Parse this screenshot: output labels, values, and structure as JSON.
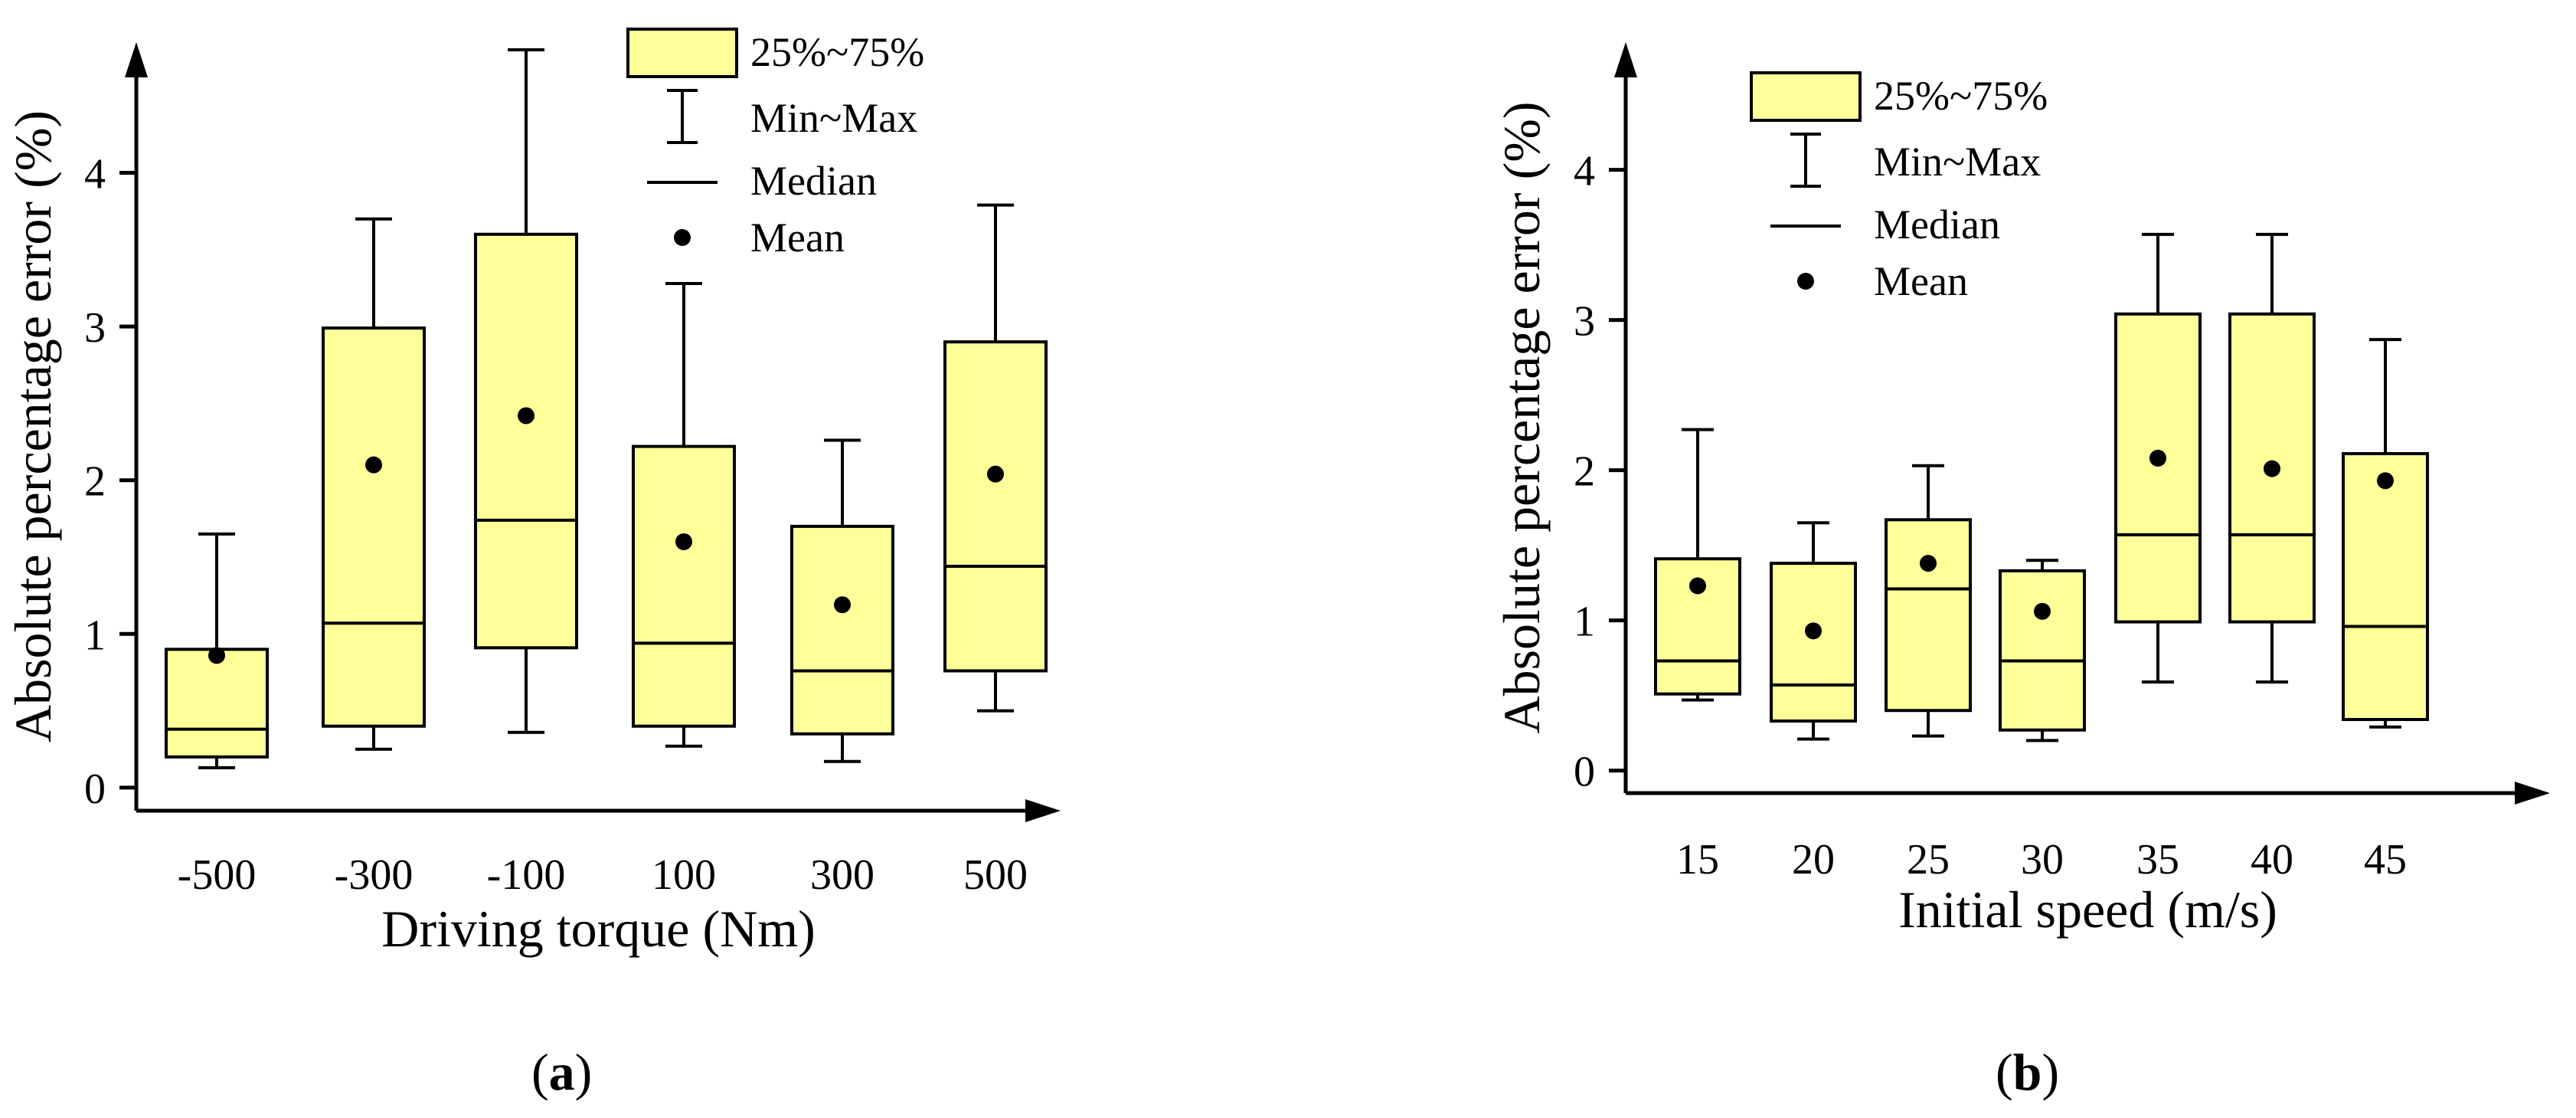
{
  "colors": {
    "box_fill": "#ffff99",
    "stroke": "#000000"
  },
  "panels": [
    {
      "label": "a"
    },
    {
      "label": "b"
    }
  ],
  "chart_data": [
    {
      "type": "box",
      "xlabel": "Driving torque (Nm)",
      "ylabel": "Absolute percentage error (%)",
      "ylim": [
        -0.15,
        4.85
      ],
      "yticks": [
        "0",
        "1",
        "2",
        "3",
        "4"
      ],
      "categories": [
        "-500",
        "-300",
        "-100",
        "100",
        "300",
        "500"
      ],
      "boxes": [
        {
          "min": 0.13,
          "q1": 0.2,
          "median": 0.38,
          "q3": 0.9,
          "max": 1.65,
          "mean": 0.86
        },
        {
          "min": 0.25,
          "q1": 0.4,
          "median": 1.07,
          "q3": 2.99,
          "max": 3.7,
          "mean": 2.1
        },
        {
          "min": 0.36,
          "q1": 0.91,
          "median": 1.74,
          "q3": 3.6,
          "max": 4.8,
          "mean": 2.42
        },
        {
          "min": 0.27,
          "q1": 0.4,
          "median": 0.94,
          "q3": 2.22,
          "max": 3.28,
          "mean": 1.6
        },
        {
          "min": 0.17,
          "q1": 0.35,
          "median": 0.76,
          "q3": 1.7,
          "max": 2.26,
          "mean": 1.19
        },
        {
          "min": 0.5,
          "q1": 0.76,
          "median": 1.44,
          "q3": 2.9,
          "max": 3.79,
          "mean": 2.04
        }
      ],
      "legend": [
        "25%~75%",
        "Min~Max",
        "Median",
        "Mean"
      ]
    },
    {
      "type": "box",
      "xlabel": "Initial speed (m/s)",
      "ylabel": "Absolute percentage error (%)",
      "ylim": [
        -0.15,
        4.85
      ],
      "yticks": [
        "0",
        "1",
        "2",
        "3",
        "4"
      ],
      "categories": [
        "15",
        "20",
        "25",
        "30",
        "35",
        "40",
        "45"
      ],
      "boxes": [
        {
          "min": 0.47,
          "q1": 0.51,
          "median": 0.73,
          "q3": 1.41,
          "max": 2.27,
          "mean": 1.23
        },
        {
          "min": 0.21,
          "q1": 0.33,
          "median": 0.57,
          "q3": 1.38,
          "max": 1.65,
          "mean": 0.93
        },
        {
          "min": 0.23,
          "q1": 0.4,
          "median": 1.21,
          "q3": 1.67,
          "max": 2.03,
          "mean": 1.38
        },
        {
          "min": 0.2,
          "q1": 0.27,
          "median": 0.73,
          "q3": 1.33,
          "max": 1.4,
          "mean": 1.06
        },
        {
          "min": 0.59,
          "q1": 0.99,
          "median": 1.57,
          "q3": 3.04,
          "max": 3.57,
          "mean": 2.08
        },
        {
          "min": 0.59,
          "q1": 0.99,
          "median": 1.57,
          "q3": 3.04,
          "max": 3.57,
          "mean": 2.01
        },
        {
          "min": 0.29,
          "q1": 0.34,
          "median": 0.96,
          "q3": 2.11,
          "max": 2.87,
          "mean": 1.93
        }
      ],
      "legend": [
        "25%~75%",
        "Min~Max",
        "Median",
        "Mean"
      ]
    }
  ]
}
